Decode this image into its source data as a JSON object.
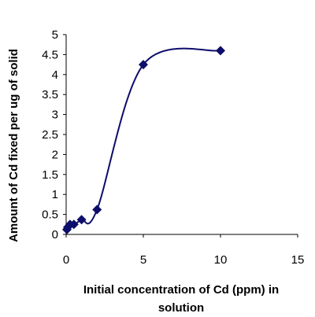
{
  "chart_data": {
    "type": "scatter",
    "title": "",
    "xlabel_lines": [
      "Initial concentration of Cd (ppm) in",
      "solution"
    ],
    "ylabel": "Amount of Cd fixed per ug of solid",
    "xlim": [
      0,
      15
    ],
    "ylim": [
      0,
      5
    ],
    "x_ticks": [
      "0",
      "5",
      "10",
      "15"
    ],
    "y_ticks": [
      "0",
      "0.5",
      "1",
      "1.5",
      "2",
      "2.5",
      "3",
      "3.5",
      "4",
      "4.5",
      "5"
    ],
    "grid": false,
    "legend": "none",
    "marker": "diamond",
    "series_color": "#0d0d6b",
    "series": [
      {
        "x": [
          0.05,
          0.1,
          0.25,
          0.5,
          1,
          2,
          5,
          10
        ],
        "y": [
          0.12,
          0.18,
          0.25,
          0.25,
          0.37,
          0.62,
          4.25,
          4.6
        ]
      }
    ],
    "smoothed_line": true
  }
}
